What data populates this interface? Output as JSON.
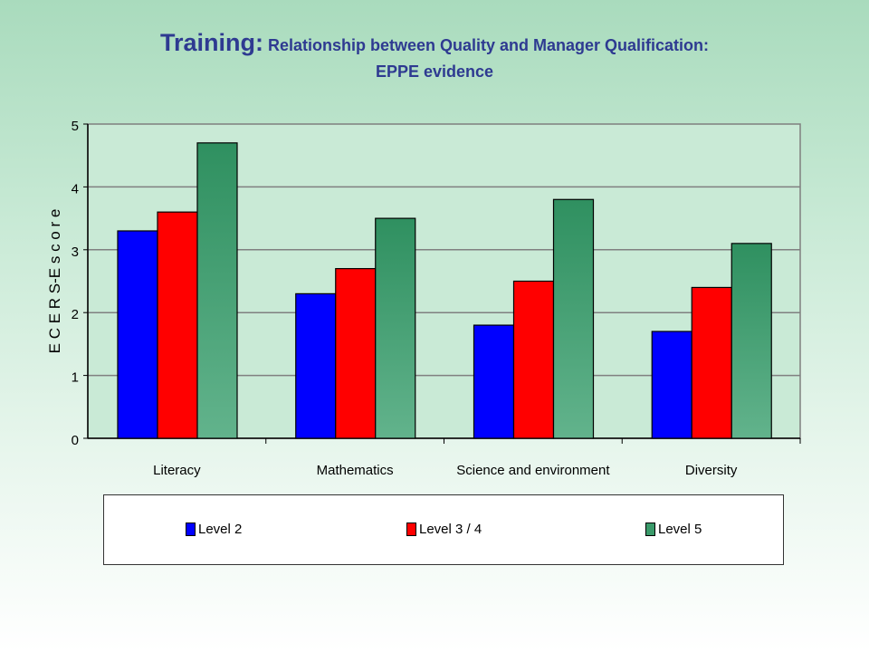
{
  "title": {
    "main": "Training:",
    "rest": "Relationship between Quality and Manager Qualification:",
    "line2": "EPPE evidence"
  },
  "colors": {
    "level2": "#0000ff",
    "level34": "#ff0000",
    "level5": "#3a9a6a",
    "title": "#2e3a91"
  },
  "chart_data": {
    "type": "bar",
    "categories": [
      "Literacy",
      "Mathematics",
      "Science and environment",
      "Diversity"
    ],
    "series": [
      {
        "name": "Level 2",
        "values": [
          3.3,
          2.3,
          1.8,
          1.7
        ]
      },
      {
        "name": "Level 3 / 4",
        "values": [
          3.6,
          2.7,
          2.5,
          2.4
        ]
      },
      {
        "name": "Level 5",
        "values": [
          4.7,
          3.5,
          3.8,
          3.1
        ]
      }
    ],
    "ylabel": "E C E R S-E  s c o r e",
    "ylim": [
      0,
      5
    ],
    "yticks": [
      "0",
      "1",
      "2",
      "3",
      "4",
      "5"
    ],
    "grid": true,
    "legend_position": "bottom"
  }
}
